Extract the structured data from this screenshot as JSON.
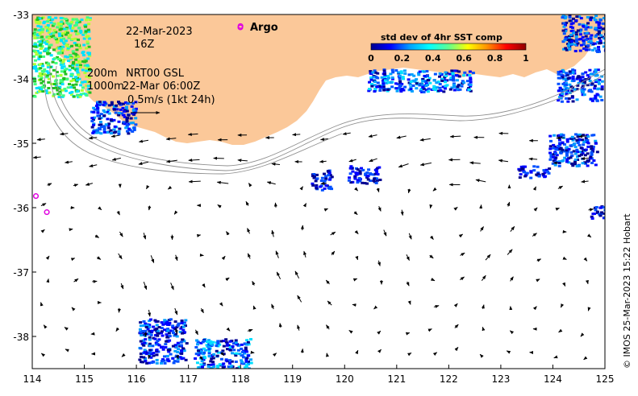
{
  "map": {
    "date_line": "22-Mar-2023",
    "hour_line": "16Z",
    "depth_200": "200m",
    "depth_1000": "1000m",
    "product": "NRT00 GSL",
    "product_time": "22-Mar 06:00Z",
    "scale_label": "0.5m/s (1kt 24h)",
    "argo_label": "Argo",
    "credit": "© IMOS 25-Mar-2023 15:22 Hobart",
    "x_ticks": [
      "114",
      "115",
      "116",
      "117",
      "118",
      "119",
      "120",
      "121",
      "122",
      "123",
      "124",
      "125"
    ],
    "y_ticks": [
      "-33",
      "-34",
      "-35",
      "-36",
      "-37",
      "-38"
    ],
    "lon_range": [
      114,
      125
    ],
    "lat_range": [
      -38.5,
      -33
    ],
    "land_color": "#fbc899",
    "argo_color": "#e000e0"
  },
  "colorbar": {
    "title": "std dev of 4hr SST comp",
    "ticks": [
      "0",
      "0.2",
      "0.4",
      "0.6",
      "0.8",
      "1"
    ],
    "colors": [
      "#00008f",
      "#0000ff",
      "#00a0ff",
      "#00ffff",
      "#60ff90",
      "#ffff00",
      "#ff9000",
      "#ff0000",
      "#8f0000"
    ]
  },
  "argo_floats": [
    {
      "lon": 118.0,
      "lat": -33.18
    },
    {
      "lon": 114.07,
      "lat": -35.82
    },
    {
      "lon": 114.28,
      "lat": -36.07
    }
  ]
}
